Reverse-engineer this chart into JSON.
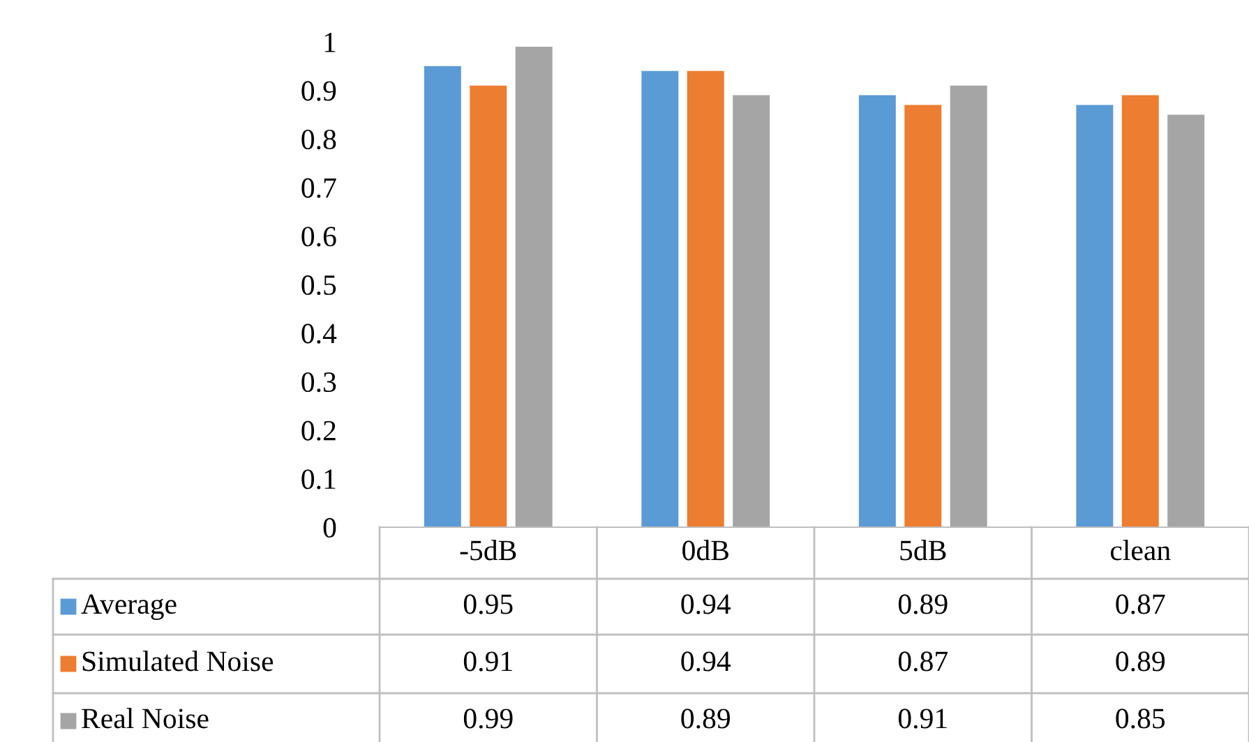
{
  "chart_data": {
    "type": "bar",
    "categories": [
      "-5dB",
      "0dB",
      "5dB",
      "clean"
    ],
    "series": [
      {
        "name": "Average",
        "color": "#5b9bd5",
        "values": [
          0.95,
          0.94,
          0.89,
          0.87
        ]
      },
      {
        "name": "Simulated Noise",
        "color": "#ed7d31",
        "values": [
          0.91,
          0.94,
          0.87,
          0.89
        ]
      },
      {
        "name": "Real Noise",
        "color": "#a5a5a5",
        "values": [
          0.99,
          0.89,
          0.91,
          0.85
        ]
      }
    ],
    "ylim": [
      0,
      1
    ],
    "yticks": [
      0,
      0.1,
      0.2,
      0.3,
      0.4,
      0.5,
      0.6,
      0.7,
      0.8,
      0.9,
      1
    ],
    "data_labels": true,
    "legend": "bottom",
    "grid": false
  }
}
